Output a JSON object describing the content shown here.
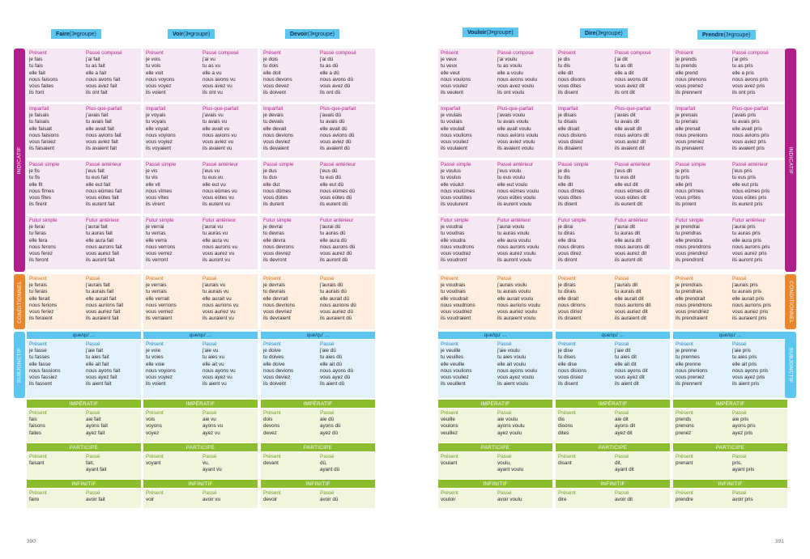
{
  "labels": {
    "indicatif": "INDICATIF",
    "conditionnel": "CONDITIONNEL",
    "subjonctif": "SUBJONCTIF",
    "que": "que/qu' ...",
    "imperatif": "IMPÉRATIF",
    "participe": "PARTICIPE",
    "infinitif": "INFINITIF",
    "present": "Présent",
    "passe": "Passé",
    "passe_compose": "Passé composé",
    "imparfait": "Imparfait",
    "pqp": "Plus-que-parfait",
    "passe_simple": "Passé simple",
    "passe_anterieur": "Passé antérieur",
    "futur_simple": "Futur simple",
    "futur_anterieur": "Futur antérieur",
    "groupe": " (3",
    "sup": "e",
    "groupe_end": " groupe)"
  },
  "pages": {
    "left": "390",
    "right": "391"
  },
  "colors": {
    "indicatif": "#b01e8a",
    "conditionnel": "#e9852a",
    "subjonctif": "#5cc6f0",
    "green": "#8cbd2f"
  },
  "verbs": [
    {
      "name": "Faire",
      "ind": [
        [
          "je fais",
          "tu fais",
          "elle fait",
          "nous faisons",
          "vous faites",
          "ils font"
        ],
        [
          "j'ai fait",
          "tu as fait",
          "elle a fait",
          "nous avons fait",
          "vous avez fait",
          "ils ont fait"
        ],
        [
          "je faisais",
          "tu faisais",
          "elle faisait",
          "nous faisions",
          "vous faisiez",
          "ils faisaient"
        ],
        [
          "j'avais fait",
          "tu avais fait",
          "elle avait fait",
          "nous avions fait",
          "vous aviez fait",
          "ils avaient fait"
        ],
        [
          "je fis",
          "tu fis",
          "elle fit",
          "nous fîmes",
          "vous fîtes",
          "ils firent"
        ],
        [
          "j'eus fait",
          "tu eus fait",
          "elle eut fait",
          "nous eûmes fait",
          "vous eûtes fait",
          "ils eurent fait"
        ],
        [
          "je ferai",
          "tu feras",
          "elle fera",
          "nous ferons",
          "vous ferez",
          "ils feront"
        ],
        [
          "j'aurai fait",
          "tu auras fait",
          "elle aura fait",
          "nous aurons fait",
          "vous aurez fait",
          "ils auront fait"
        ]
      ],
      "cond": [
        [
          "je ferais",
          "tu ferais",
          "elle ferait",
          "nous ferions",
          "vous feriez",
          "ils feraient"
        ],
        [
          "j'aurais fait",
          "tu aurais fait",
          "elle aurait fait",
          "nous aurions fait",
          "vous auriez fait",
          "ils auraient fait"
        ]
      ],
      "sub": [
        [
          "je fasse",
          "tu fasses",
          "elle fasse",
          "nous fassions",
          "vous fassiez",
          "ils fassent"
        ],
        [
          "j'aie fait",
          "tu aies fait",
          "elle ait fait",
          "nous ayons fait",
          "vous ayez fait",
          "ils aient fait"
        ]
      ],
      "imp": [
        [
          "fais",
          "faisons",
          "faites"
        ],
        [
          "aie fait",
          "ayons fait",
          "ayez fait"
        ]
      ],
      "part": [
        [
          "faisant"
        ],
        [
          "fait,",
          "ayant fait"
        ]
      ],
      "inf": [
        [
          "faire"
        ],
        [
          "avoir fait"
        ]
      ]
    },
    {
      "name": "Voir",
      "ind": [
        [
          "je vois",
          "tu vois",
          "elle voit",
          "nous voyons",
          "vous voyez",
          "ils voient"
        ],
        [
          "j'ai vu",
          "tu as vu",
          "elle a vu",
          "nous avons vu",
          "vous avez vu",
          "ils ont vu"
        ],
        [
          "je voyais",
          "tu voyais",
          "elle voyait",
          "nous voyions",
          "vous voyiez",
          "ils voyaient"
        ],
        [
          "j'avais vu",
          "tu avais vu",
          "elle avait vu",
          "nous avions vu",
          "vous aviez vu",
          "ils avaient vu"
        ],
        [
          "je vis",
          "tu vis",
          "elle vit",
          "nous vîmes",
          "vous vîtes",
          "ils virent"
        ],
        [
          "j'eus vu",
          "tu eus vu",
          "elle eut vu",
          "nous eûmes vu",
          "vous eûtes vu",
          "ils eurent vu"
        ],
        [
          "je verrai",
          "tu verras",
          "elle verra",
          "nous verrons",
          "vous verrez",
          "ils verront"
        ],
        [
          "j'aurai vu",
          "tu auras vu",
          "elle aura vu",
          "nous aurons vu",
          "vous aurez vu",
          "ils auront vu"
        ]
      ],
      "cond": [
        [
          "je verrais",
          "tu verrais",
          "elle verrait",
          "nous verrions",
          "vous verriez",
          "ils verraient"
        ],
        [
          "j'aurais vu",
          "tu aurais vu",
          "elle aurait vu",
          "nous aurions vu",
          "vous auriez vu",
          "ils auraient vu"
        ]
      ],
      "sub": [
        [
          "je voie",
          "tu voies",
          "elle voie",
          "nous voyions",
          "vous voyiez",
          "ils voient"
        ],
        [
          "j'aie vu",
          "tu aies vu",
          "elle ait vu",
          "nous ayons vu",
          "vous ayez vu",
          "ils aient vu"
        ]
      ],
      "imp": [
        [
          "vois",
          "voyons",
          "voyez"
        ],
        [
          "aie vu",
          "ayons vu",
          "ayez vu"
        ]
      ],
      "part": [
        [
          "voyant"
        ],
        [
          "vu,",
          "ayant vu"
        ]
      ],
      "inf": [
        [
          "voir"
        ],
        [
          "avoir vu"
        ]
      ]
    },
    {
      "name": "Devoir",
      "ind": [
        [
          "je dois",
          "tu dois",
          "elle doit",
          "nous devons",
          "vous devez",
          "ils doivent"
        ],
        [
          "j'ai dû",
          "tu as dû",
          "elle a dû",
          "nous avons dû",
          "vous avez dû",
          "ils ont dû"
        ],
        [
          "je devais",
          "tu devais",
          "elle devait",
          "nous devions",
          "vous deviez",
          "ils devaient"
        ],
        [
          "j'avais dû",
          "tu avais dû",
          "elle avait dû",
          "nous avions dû",
          "vous aviez dû",
          "ils avaient dû"
        ],
        [
          "je dus",
          "tu dus",
          "elle dut",
          "nous dûmes",
          "vous dûtes",
          "ils durent"
        ],
        [
          "j'eus dû",
          "tu eus dû",
          "elle eut dû",
          "nous eûmes dû",
          "vous eûtes dû",
          "ils eurent dû"
        ],
        [
          "je devrai",
          "tu devras",
          "elle devra",
          "nous devrons",
          "vous devrez",
          "ils devront"
        ],
        [
          "j'aurai dû",
          "tu auras dû",
          "elle aura dû",
          "nous aurons dû",
          "vous aurez dû",
          "ils auront dû"
        ]
      ],
      "cond": [
        [
          "je devrais",
          "tu devrais",
          "elle devrait",
          "nous devrions",
          "vous devriez",
          "ils devraient"
        ],
        [
          "j'aurais dû",
          "tu aurais dû",
          "elle aurait dû",
          "nous aurions dû",
          "vous auriez dû",
          "ils auraient dû"
        ]
      ],
      "sub": [
        [
          "je doive",
          "tu doives",
          "elle doive",
          "nous devions",
          "vous deviez",
          "ils doivent"
        ],
        [
          "j'aie dû",
          "tu aies dû",
          "elle ait dû",
          "nous ayons dû",
          "vous ayez dû",
          "ils aient dû"
        ]
      ],
      "imp": [
        [
          "dois",
          "devons",
          "devez"
        ],
        [
          "aie dû",
          "ayons dû",
          "ayez dû"
        ]
      ],
      "part": [
        [
          "devant"
        ],
        [
          "dû,",
          "ayant dû"
        ]
      ],
      "inf": [
        [
          "devoir"
        ],
        [
          "avoir dû"
        ]
      ]
    },
    {
      "name": "Vouloir",
      "ind": [
        [
          "je veux",
          "tu veux",
          "elle veut",
          "nous voulons",
          "vous voulez",
          "ils veulent"
        ],
        [
          "j'ai voulu",
          "tu as voulu",
          "elle a voulu",
          "nous avons voulu",
          "vous avez voulu",
          "ils ont voulu"
        ],
        [
          "je voulais",
          "tu voulais",
          "elle voulait",
          "nous voulions",
          "vous vouliez",
          "ils voulaient"
        ],
        [
          "j'avais voulu",
          "tu avais voulu",
          "elle avait voulu",
          "nous avions voulu",
          "vous aviez voulu",
          "ils avaient voulu"
        ],
        [
          "je voulus",
          "tu voulus",
          "elle voulut",
          "nous voulûmes",
          "vous voulûtes",
          "ils voulurent"
        ],
        [
          "j'eus voulu",
          "tu eus voulu",
          "elle eut voulu",
          "nous eûmes voulu",
          "vous eûtes voulu",
          "ils eurent voulu"
        ],
        [
          "je voudrai",
          "tu voudras",
          "elle voudra",
          "nous voudrons",
          "vous voudrez",
          "ils voudront"
        ],
        [
          "j'aurai voulu",
          "tu auras voulu",
          "elle aura voulu",
          "nous aurons voulu",
          "vous aurez voulu",
          "ils auront voulu"
        ]
      ],
      "cond": [
        [
          "je voudrais",
          "tu voudrais",
          "elle voudrait",
          "nous voudrions",
          "vous voudriez",
          "ils voudraient"
        ],
        [
          "j'aurais voulu",
          "tu aurais voulu",
          "elle aurait voulu",
          "nous aurions voulu",
          "vous auriez voulu",
          "ils auraient voulu"
        ]
      ],
      "sub": [
        [
          "je veuille",
          "tu veuilles",
          "elle veuille",
          "nous voulions",
          "vous vouliez",
          "ils veuillent"
        ],
        [
          "j'aie voulu",
          "tu aies voulu",
          "elle ait voulu",
          "nous ayons voulu",
          "vous ayez voulu",
          "ils aient voulu"
        ]
      ],
      "imp": [
        [
          "veuille",
          "voulons",
          "veuillez"
        ],
        [
          "aie voulu",
          "ayons voulu",
          "ayez voulu"
        ]
      ],
      "part": [
        [
          "voulant"
        ],
        [
          "voulu,",
          "ayant voulu"
        ]
      ],
      "inf": [
        [
          "vouloir"
        ],
        [
          "avoir voulu"
        ]
      ]
    },
    {
      "name": "Dire",
      "ind": [
        [
          "je dis",
          "tu dis",
          "elle dit",
          "nous disons",
          "vous dites",
          "ils disent"
        ],
        [
          "j'ai dit",
          "tu as dit",
          "elle a dit",
          "nous avons dit",
          "vous avez dit",
          "ils ont dit"
        ],
        [
          "je disais",
          "tu disais",
          "elle disait",
          "nous disions",
          "vous disiez",
          "ils disaient"
        ],
        [
          "j'avais dit",
          "tu avais dit",
          "elle avait dit",
          "nous avions dit",
          "vous aviez dit",
          "ils avaient dit"
        ],
        [
          "je dis",
          "tu dis",
          "elle dit",
          "nous dîmes",
          "vous dîtes",
          "ils dirent"
        ],
        [
          "j'eus dit",
          "tu eus dit",
          "elle eut dit",
          "nous eûmes dit",
          "vous eûtes dit",
          "ils eurent dit"
        ],
        [
          "je dirai",
          "tu diras",
          "elle dira",
          "nous dirons",
          "vous direz",
          "ils diront"
        ],
        [
          "j'aurai dit",
          "tu auras dit",
          "elle aura dit",
          "nous aurons dit",
          "vous aurez dit",
          "ils auront dit"
        ]
      ],
      "cond": [
        [
          "je dirais",
          "tu dirais",
          "elle dirait",
          "nous dirions",
          "vous diriez",
          "ils diraient"
        ],
        [
          "j'aurais dit",
          "tu aurais dit",
          "elle aurait dit",
          "nous aurions dit",
          "vous auriez dit",
          "ils auraient dit"
        ]
      ],
      "sub": [
        [
          "je dise",
          "tu dises",
          "elle dise",
          "nous disions",
          "vous disiez",
          "ils disent"
        ],
        [
          "j'aie dit",
          "tu aies dit",
          "elle ait dit",
          "nous ayons dit",
          "vous ayez dit",
          "ils aient dit"
        ]
      ],
      "imp": [
        [
          "dis",
          "disons",
          "dites"
        ],
        [
          "aie dit",
          "ayons dit",
          "ayez dit"
        ]
      ],
      "part": [
        [
          "disant"
        ],
        [
          "dit,",
          "ayant dit"
        ]
      ],
      "inf": [
        [
          "dire"
        ],
        [
          "avoir dit"
        ]
      ]
    },
    {
      "name": "Prendre",
      "ind": [
        [
          "je prends",
          "tu prends",
          "elle prend",
          "nous prenons",
          "vous prenez",
          "ils prennent"
        ],
        [
          "j'ai pris",
          "tu as pris",
          "elle a pris",
          "nous avons pris",
          "vous avez pris",
          "ils ont pris"
        ],
        [
          "je prenais",
          "tu prenais",
          "elle prenait",
          "nous prenions",
          "vous preniez",
          "ils prenaient"
        ],
        [
          "j'avais pris",
          "tu avais pris",
          "elle avait pris",
          "nous avions pris",
          "vous aviez pris",
          "ils avaient pris"
        ],
        [
          "je pris",
          "tu pris",
          "elle prit",
          "nous prîmes",
          "vous prîtes",
          "ils prirent"
        ],
        [
          "j'eus pris",
          "tu eus pris",
          "elle eut pris",
          "nous eûmes pris",
          "vous eûtes pris",
          "ils eurent pris"
        ],
        [
          "je prendrai",
          "tu prendras",
          "elle prendra",
          "nous prendrons",
          "vous prendrez",
          "ils prendront"
        ],
        [
          "j'aurai pris",
          "tu auras pris",
          "elle aura pris",
          "nous aurons pris",
          "vous aurez pris",
          "ils auront pris"
        ]
      ],
      "cond": [
        [
          "je prendrais",
          "tu prendrais",
          "elle prendrait",
          "nous prendrions",
          "vous prendriez",
          "ils prendraient"
        ],
        [
          "j'aurais pris",
          "tu aurais pris",
          "elle aurait pris",
          "nous aurions pris",
          "vous auriez pris",
          "ils auraient pris"
        ]
      ],
      "sub": [
        [
          "je prenne",
          "tu prennes",
          "elle prenne",
          "nous prenions",
          "vous preniez",
          "ils prennent"
        ],
        [
          "j'aie pris",
          "tu aies pris",
          "elle ait pris",
          "nous ayons pris",
          "vous ayez pris",
          "ils aient pris"
        ]
      ],
      "imp": [
        [
          "prends",
          "prenons",
          "prenez"
        ],
        [
          "aie pris",
          "ayons pris",
          "ayez pris"
        ]
      ],
      "part": [
        [
          "prenant"
        ],
        [
          "pris,",
          "ayant pris"
        ]
      ],
      "inf": [
        [
          "prendre"
        ],
        [
          "avoir pris"
        ]
      ]
    }
  ]
}
